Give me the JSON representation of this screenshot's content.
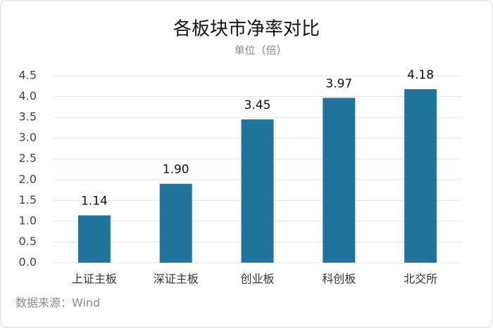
{
  "chart_data": {
    "type": "bar",
    "title": "各板块市净率对比",
    "subtitle": "单位（倍）",
    "source": "数据来源：Wind",
    "categories": [
      "上证主板",
      "深证主板",
      "创业板",
      "科创板",
      "北交所"
    ],
    "values": [
      1.14,
      1.9,
      3.45,
      3.97,
      4.18
    ],
    "value_labels": [
      "1.14",
      "1.90",
      "3.45",
      "3.97",
      "4.18"
    ],
    "color": "#21759c",
    "ylim": [
      0,
      4.5
    ],
    "yticks": [
      {
        "value": 0,
        "label": "0.0"
      },
      0.5,
      {
        "value": 1,
        "label": "1.0"
      },
      1.5,
      {
        "value": 2,
        "label": "2.0"
      },
      2.5,
      {
        "value": 3,
        "label": "3.0"
      },
      3.5,
      {
        "value": 4,
        "label": "4.0"
      },
      4.5
    ],
    "grid": true
  }
}
